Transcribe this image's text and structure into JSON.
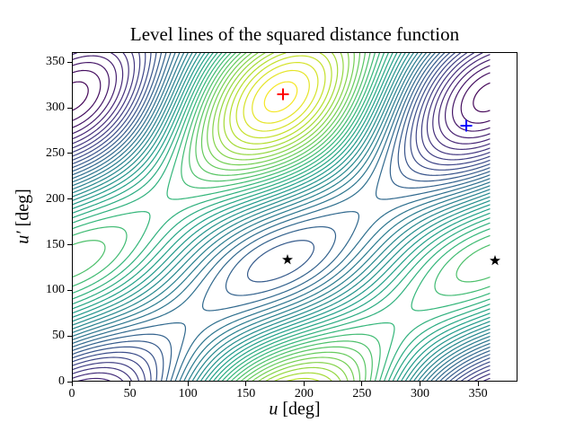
{
  "figure": {
    "background": "#ffffff",
    "axis_color": "#000000"
  },
  "chart_data": {
    "type": "contour",
    "title": "Level lines of the squared distance function",
    "xlabel": {
      "variable": "u",
      "unit": " [deg]"
    },
    "ylabel": {
      "variable": "u′",
      "unit": " [deg]"
    },
    "xlim": [
      0,
      384
    ],
    "ylim": [
      0,
      361
    ],
    "xticks": [
      0,
      50,
      100,
      150,
      200,
      250,
      300,
      350
    ],
    "yticks": [
      0,
      50,
      100,
      150,
      200,
      250,
      300,
      350
    ],
    "grid_on": false,
    "legend": "none",
    "n_levels": 40,
    "colormap": "viridis",
    "colormap_stops": [
      "#440154",
      "#482878",
      "#3e4989",
      "#31688e",
      "#26828e",
      "#1f9e89",
      "#35b779",
      "#6ece58",
      "#b5de2b",
      "#fde725"
    ],
    "field": {
      "description": "Estimated model of the plotted squared-distance field: f(u,u') = -B*cos(u-u'-alpha) - C*cos(u+u'-beta) - D*cos(u), angles in degrees; global maximum near (180,312), valley along u-u'=48 with minimum near (180,132), deep minimum near (360,312), low shoulder near (360,132).",
      "B": 1.0,
      "C": 0.35,
      "D": 0.5,
      "alpha_deg": 48,
      "beta_deg": 312,
      "u_range": [
        0,
        360
      ],
      "u_prime_range": [
        0,
        360
      ],
      "step_deg": 2
    },
    "markers": [
      {
        "name": "distance-maximum-marker",
        "symbol": "plus",
        "color": "#ff0000",
        "u": 182,
        "u_prime": 315
      },
      {
        "name": "critical-point-marker",
        "symbol": "plus",
        "color": "#0000ff",
        "u": 340,
        "u_prime": 280
      },
      {
        "name": "distance-minimum-marker-1",
        "symbol": "star",
        "color": "#000000",
        "u": 186,
        "u_prime": 134
      },
      {
        "name": "distance-minimum-marker-2",
        "symbol": "star",
        "color": "#000000",
        "u": 365,
        "u_prime": 133
      }
    ]
  }
}
